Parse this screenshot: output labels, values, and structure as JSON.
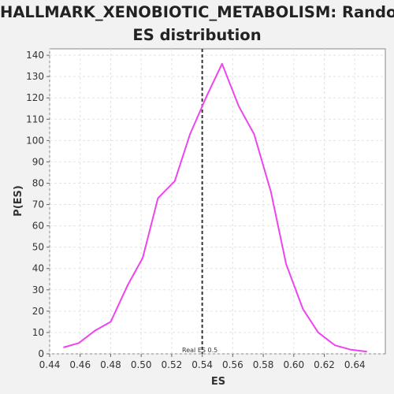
{
  "chart_data": {
    "type": "line",
    "title_lines": [
      "HALLMARK_XENOBIOTIC_METABOLISM: Random",
      "ES distribution"
    ],
    "xlabel": "ES",
    "ylabel": "P(ES)",
    "xlim": [
      0.44,
      0.66
    ],
    "ylim": [
      0,
      143
    ],
    "xticks": [
      "0.44",
      "0.46",
      "0.48",
      "0.50",
      "0.52",
      "0.54",
      "0.56",
      "0.58",
      "0.60",
      "0.62",
      "0.64"
    ],
    "yticks": [
      "0",
      "10",
      "20",
      "30",
      "40",
      "50",
      "60",
      "70",
      "80",
      "90",
      "100",
      "110",
      "120",
      "130",
      "140"
    ],
    "grid": true,
    "series": [
      {
        "color": "#ee44ee",
        "x": [
          0.449,
          0.459,
          0.47,
          0.48,
          0.491,
          0.501,
          0.511,
          0.522,
          0.532,
          0.543,
          0.553,
          0.564,
          0.574,
          0.585,
          0.595,
          0.606,
          0.616,
          0.627,
          0.637,
          0.648
        ],
        "y": [
          3,
          5,
          11,
          15,
          32,
          45,
          73,
          81,
          103,
          121,
          136,
          116,
          103,
          76,
          42,
          21,
          10,
          4,
          2,
          1
        ]
      }
    ],
    "annotation": {
      "x": 0.54,
      "label": "Real ES 0.5",
      "color": "#333333",
      "style": "dashed"
    }
  }
}
